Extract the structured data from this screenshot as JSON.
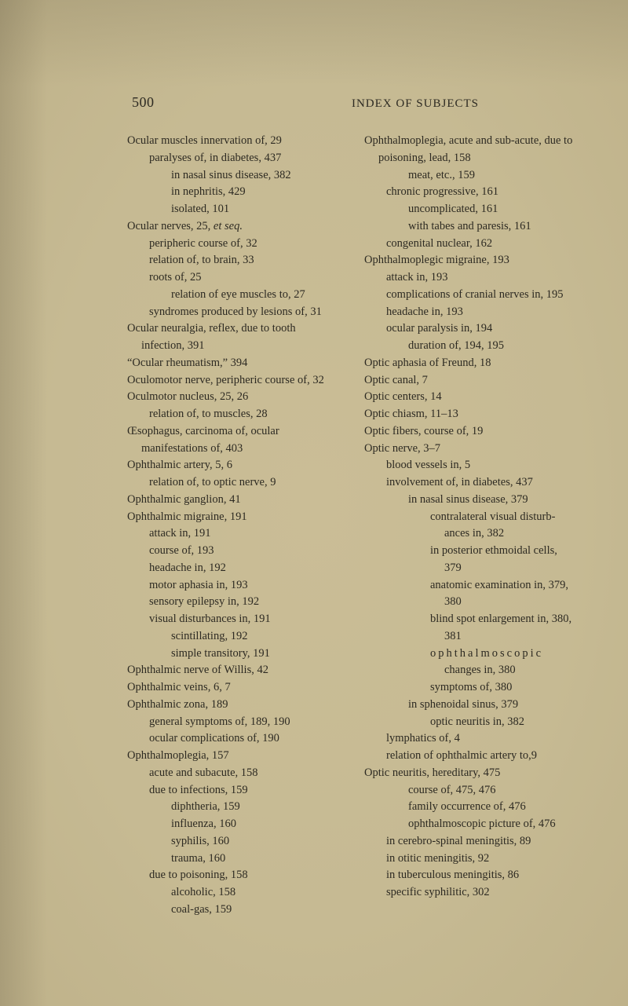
{
  "header": {
    "page_number": "500",
    "running_head": "INDEX OF SUBJECTS"
  },
  "left_column": [
    {
      "level": 0,
      "text": "Ocular muscles innervation of, 29"
    },
    {
      "level": 1,
      "text": "paralyses of, in diabetes, 437"
    },
    {
      "level": 2,
      "text": "in nasal sinus disease, 382"
    },
    {
      "level": 2,
      "text": "in nephritis, 429"
    },
    {
      "level": 2,
      "text": "isolated, 101"
    },
    {
      "level": 0,
      "text": "Ocular nerves, 25, et seq.",
      "italic_tail": "et seq."
    },
    {
      "level": 1,
      "text": "peripheric course of, 32"
    },
    {
      "level": 1,
      "text": "relation of, to brain, 33"
    },
    {
      "level": 1,
      "text": "roots of, 25"
    },
    {
      "level": 2,
      "text": "relation of eye muscles to, 27"
    },
    {
      "level": 1,
      "text": "syndromes produced by lesions of, 31"
    },
    {
      "level": 0,
      "text": "Ocular neuralgia, reflex, due to tooth infection, 391"
    },
    {
      "level": 0,
      "text": "“Ocular rheumatism,” 394"
    },
    {
      "level": 0,
      "text": "Oculomotor nerve, peripheric course of, 32"
    },
    {
      "level": 0,
      "text": "Oculmotor nucleus, 25, 26"
    },
    {
      "level": 1,
      "text": "relation of, to muscles, 28"
    },
    {
      "level": 0,
      "text": "Œsophagus, carcinoma of, ocular manifestations of, 403"
    },
    {
      "level": 0,
      "text": "Ophthalmic artery, 5, 6"
    },
    {
      "level": 1,
      "text": "relation of, to optic nerve, 9"
    },
    {
      "level": 0,
      "text": "Ophthalmic ganglion, 41"
    },
    {
      "level": 0,
      "text": "Ophthalmic migraine, 191"
    },
    {
      "level": 1,
      "text": "attack in, 191"
    },
    {
      "level": 1,
      "text": "course of, 193"
    },
    {
      "level": 1,
      "text": "headache in, 192"
    },
    {
      "level": 1,
      "text": "motor aphasia in, 193"
    },
    {
      "level": 1,
      "text": "sensory epilepsy in, 192"
    },
    {
      "level": 1,
      "text": "visual disturbances in, 191"
    },
    {
      "level": 2,
      "text": "scintillating, 192"
    },
    {
      "level": 2,
      "text": "simple transitory, 191"
    },
    {
      "level": 0,
      "text": "Ophthalmic nerve of Willis, 42"
    },
    {
      "level": 0,
      "text": "Ophthalmic veins, 6, 7"
    },
    {
      "level": 0,
      "text": "Ophthalmic zona, 189"
    },
    {
      "level": 1,
      "text": "general symptoms of, 189, 190"
    },
    {
      "level": 1,
      "text": "ocular complications of, 190"
    },
    {
      "level": 0,
      "text": "Ophthalmoplegia, 157"
    },
    {
      "level": 1,
      "text": "acute and subacute, 158"
    },
    {
      "level": 1,
      "text": "due to infections, 159"
    },
    {
      "level": 2,
      "text": "diphtheria, 159"
    },
    {
      "level": 2,
      "text": "influenza, 160"
    },
    {
      "level": 2,
      "text": "syphilis, 160"
    },
    {
      "level": 2,
      "text": "trauma, 160"
    },
    {
      "level": 1,
      "text": "due to poisoning, 158"
    },
    {
      "level": 2,
      "text": "alcoholic, 158"
    },
    {
      "level": 2,
      "text": "coal-gas, 159"
    }
  ],
  "right_column": [
    {
      "level": 0,
      "text": "Ophthalmoplegia, acute and sub-acute, due to poisoning, lead, 158"
    },
    {
      "level": 2,
      "text": "meat, etc., 159"
    },
    {
      "level": 1,
      "text": "chronic progressive, 161"
    },
    {
      "level": 2,
      "text": "uncomplicated, 161"
    },
    {
      "level": 2,
      "text": "with tabes and paresis, 161"
    },
    {
      "level": 1,
      "text": "congenital nuclear, 162"
    },
    {
      "level": 0,
      "text": "Ophthalmoplegic migraine, 193"
    },
    {
      "level": 1,
      "text": "attack in, 193"
    },
    {
      "level": 1,
      "text": "complications of cranial nerves in, 195"
    },
    {
      "level": 1,
      "text": "headache in, 193"
    },
    {
      "level": 1,
      "text": "ocular paralysis in, 194"
    },
    {
      "level": 2,
      "text": "duration of, 194, 195"
    },
    {
      "level": 0,
      "text": "Optic aphasia of Freund, 18"
    },
    {
      "level": 0,
      "text": "Optic canal, 7"
    },
    {
      "level": 0,
      "text": "Optic centers, 14"
    },
    {
      "level": 0,
      "text": "Optic chiasm, 11–13"
    },
    {
      "level": 0,
      "text": "Optic fibers, course of, 19"
    },
    {
      "level": 0,
      "text": "Optic nerve, 3–7"
    },
    {
      "level": 1,
      "text": "blood vessels in, 5"
    },
    {
      "level": 1,
      "text": "involvement of, in diabetes, 437"
    },
    {
      "level": 2,
      "text": "in nasal sinus disease, 379"
    },
    {
      "level": 3,
      "text": "contralateral visual disturb-ances in, 382"
    },
    {
      "level": 3,
      "text": "in posterior ethmoidal cells, 379"
    },
    {
      "level": 3,
      "text": "anatomic examination in, 379, 380"
    },
    {
      "level": 3,
      "text": "blind spot enlargement in, 380, 381"
    },
    {
      "level": 3,
      "text": "ophthalmoscopic changes in, 380",
      "spaced_word": "ophthalmoscopic"
    },
    {
      "level": 3,
      "text": "symptoms of, 380"
    },
    {
      "level": 2,
      "text": "in sphenoidal sinus, 379"
    },
    {
      "level": 3,
      "text": "optic neuritis in, 382"
    },
    {
      "level": 1,
      "text": "lymphatics of, 4"
    },
    {
      "level": 1,
      "text": "relation of ophthalmic artery to,9"
    },
    {
      "level": 0,
      "text": "Optic neuritis, hereditary, 475"
    },
    {
      "level": 2,
      "text": "course of, 475, 476"
    },
    {
      "level": 2,
      "text": "family occurrence of, 476"
    },
    {
      "level": 2,
      "text": "ophthalmoscopic picture of, 476"
    },
    {
      "level": 1,
      "text": "in cerebro-spinal meningitis, 89"
    },
    {
      "level": 1,
      "text": "in otitic meningitis, 92"
    },
    {
      "level": 1,
      "text": "in tuberculous meningitis, 86"
    },
    {
      "level": 1,
      "text": "specific syphilitic, 302"
    }
  ]
}
